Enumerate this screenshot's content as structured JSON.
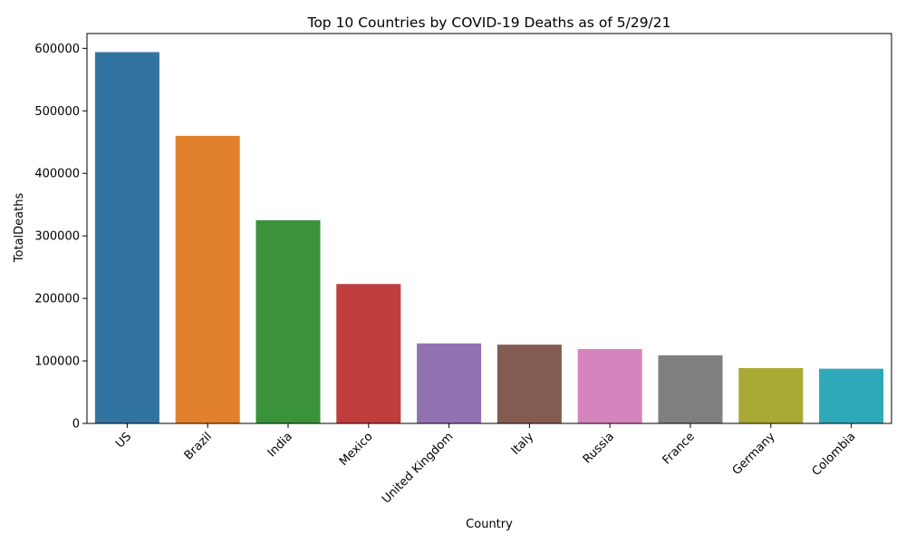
{
  "chart_data": {
    "type": "bar",
    "title": "Top 10 Countries by COVID-19 Deaths as of 5/29/21",
    "xlabel": "Country",
    "ylabel": "TotalDeaths",
    "categories": [
      "US",
      "Brazil",
      "India",
      "Mexico",
      "United Kingdom",
      "Italy",
      "Russia",
      "France",
      "Germany",
      "Colombia"
    ],
    "values": [
      594000,
      460000,
      325000,
      223000,
      128000,
      126000,
      119000,
      109000,
      88500,
      87500
    ],
    "colors": [
      "#3274a1",
      "#e1812c",
      "#3a923a",
      "#c03d3e",
      "#9372b2",
      "#845b53",
      "#d684bd",
      "#7f7f7f",
      "#a9aa35",
      "#2fa8ba"
    ],
    "ylim": [
      0,
      623700
    ],
    "yticks": [
      0,
      100000,
      200000,
      300000,
      400000,
      500000,
      600000
    ],
    "ytick_labels": [
      "0",
      "100000",
      "200000",
      "300000",
      "400000",
      "500000",
      "600000"
    ],
    "grid": false,
    "legend": false
  }
}
